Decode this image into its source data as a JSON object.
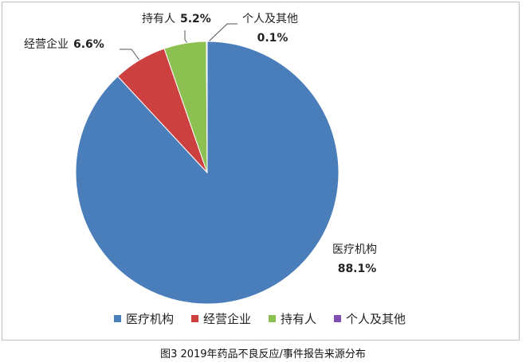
{
  "chart_data": {
    "type": "pie",
    "title": "图3 2019年药品不良反应/事件报告来源分布",
    "categories": [
      "医疗机构",
      "经营企业",
      "持有人",
      "个人及其他"
    ],
    "values": [
      88.1,
      6.6,
      5.2,
      0.1
    ],
    "value_labels": [
      "88.1%",
      "6.6%",
      "5.2%",
      "0.1%"
    ],
    "colors": [
      "#4a7ebb",
      "#cc4040",
      "#8cc152",
      "#7f4fb3"
    ],
    "legend": "bottom"
  }
}
